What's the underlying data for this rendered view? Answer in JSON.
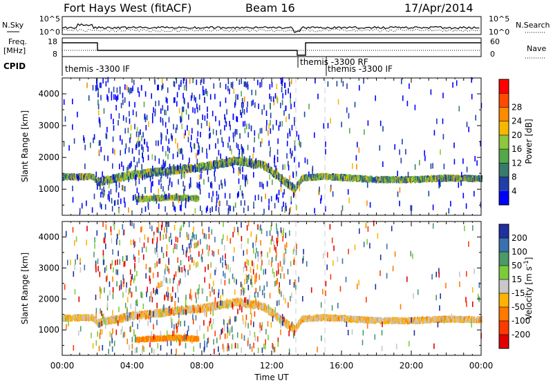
{
  "header": {
    "station": "Fort Hays West (fitACF)",
    "beam": "Beam 16",
    "date": "17/Apr/2014"
  },
  "top_panels": {
    "nsky_label": "N.Sky",
    "nsearch_label": "N.Search",
    "noise_ticks": [
      "10^5",
      "10^0"
    ],
    "freq_label_line1": "Freq.",
    "freq_label_line2": "[MHz]",
    "freq_ticks": [
      "18",
      "8"
    ],
    "nave_label": "Nave",
    "nave_ticks": [
      "60",
      "0"
    ],
    "cpid_label": "CPID",
    "cpid_entries": [
      {
        "text": "themis -3300 IF",
        "start_hour": 0.05
      },
      {
        "text": "themis -3300 RF",
        "start_hour": 13.55
      },
      {
        "text": "themis -3300 IF",
        "start_hour": 15.15
      }
    ]
  },
  "axes": {
    "x_ticks": [
      "00:00",
      "04:00",
      "08:00",
      "12:00",
      "16:00",
      "20:00",
      "00:00"
    ],
    "xlabel": "Time UT",
    "ylabel": "Slant Range [km]",
    "y_ticks": [
      "1000",
      "2000",
      "3000",
      "4000"
    ]
  },
  "chart_data": [
    {
      "type": "heatmap",
      "name": "power",
      "xlim": [
        0,
        24
      ],
      "ylim": [
        180,
        4500
      ],
      "colorbar": {
        "label": "Power [dB]",
        "ticks": [
          "4",
          "8",
          "12",
          "16",
          "20",
          "24",
          "28"
        ],
        "range": [
          0,
          30
        ],
        "colors": [
          "#0000ff",
          "#1f3fa8",
          "#3a7a6a",
          "#55a84a",
          "#8ec63f",
          "#f5b800",
          "#ff8a00",
          "#ff4a00",
          "#ff0000"
        ]
      },
      "features": [
        {
          "label": "main echo band",
          "points": [
            [
              0.0,
              1380
            ],
            [
              1.7,
              1400
            ],
            [
              2.0,
              1230
            ],
            [
              4.0,
              1450
            ],
            [
              8.0,
              1700
            ],
            [
              10.0,
              1900
            ],
            [
              11.5,
              1750
            ],
            [
              13.3,
              1000
            ],
            [
              13.7,
              1350
            ],
            [
              15.0,
              1400
            ],
            [
              18.0,
              1300
            ],
            [
              20.0,
              1300
            ],
            [
              22.0,
              1350
            ],
            [
              24.0,
              1330
            ]
          ]
        },
        {
          "label": "lower echo band",
          "points": [
            [
              4.3,
              700
            ],
            [
              5.5,
              730
            ],
            [
              6.5,
              760
            ],
            [
              7.5,
              720
            ]
          ]
        }
      ]
    },
    {
      "type": "heatmap",
      "name": "velocity",
      "xlim": [
        0,
        24
      ],
      "ylim": [
        180,
        4500
      ],
      "colorbar": {
        "label": "Velocity [m s^-1]",
        "ticks": [
          "200",
          "100",
          "50",
          "15",
          "-15",
          "-50",
          "-100",
          "-200"
        ],
        "range": [
          -250,
          250
        ],
        "colors": [
          "#2030a0",
          "#3a70b0",
          "#4a9a6a",
          "#7ecb3a",
          "#c8c8c8",
          "#ffb300",
          "#ff7a00",
          "#ff3a00",
          "#e00000"
        ]
      },
      "features": [
        {
          "label": "main echo band",
          "points": [
            [
              0.0,
              1380
            ],
            [
              1.7,
              1400
            ],
            [
              2.0,
              1230
            ],
            [
              4.0,
              1450
            ],
            [
              8.0,
              1700
            ],
            [
              10.0,
              1900
            ],
            [
              11.5,
              1750
            ],
            [
              13.3,
              1000
            ],
            [
              13.7,
              1350
            ],
            [
              15.0,
              1400
            ],
            [
              18.0,
              1300
            ],
            [
              20.0,
              1300
            ],
            [
              22.0,
              1350
            ],
            [
              24.0,
              1330
            ]
          ]
        },
        {
          "label": "lower echo band",
          "points": [
            [
              4.3,
              700
            ],
            [
              5.5,
              730
            ],
            [
              6.5,
              760
            ],
            [
              7.5,
              720
            ]
          ]
        }
      ]
    }
  ]
}
